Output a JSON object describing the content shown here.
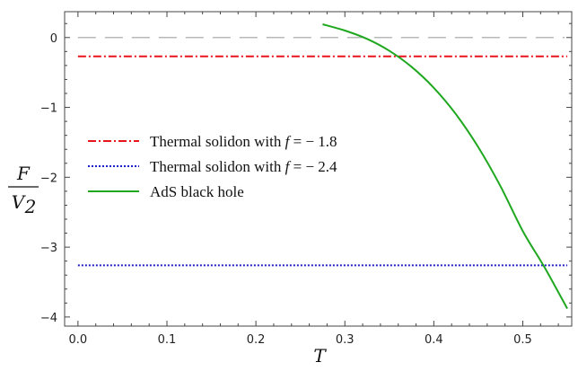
{
  "chart_data": {
    "type": "line",
    "xlabel": "T",
    "ylabel_num": "F",
    "ylabel_den_main": "V",
    "ylabel_den_sub": "2",
    "xlim": [
      -0.015,
      0.555
    ],
    "ylim": [
      -4.13,
      0.37
    ],
    "x_ticks": [
      0.0,
      0.1,
      0.2,
      0.3,
      0.4,
      0.5
    ],
    "x_tick_labels": [
      "0.0",
      "0.1",
      "0.2",
      "0.3",
      "0.4",
      "0.5"
    ],
    "y_ticks": [
      0,
      -1,
      -2,
      -3,
      -4
    ],
    "y_tick_labels": [
      "0",
      "−1",
      "−2",
      "−3",
      "−4"
    ],
    "reference_line": {
      "y": 0,
      "color": "#a0a0a0"
    },
    "series": [
      {
        "name_prefix": "Thermal solidon with ",
        "name_var": "f",
        "name_suffix": " = − 1.8",
        "style": "dashdot",
        "color": "#e8141b",
        "x": [
          0.0,
          0.55
        ],
        "y": [
          -0.27,
          -0.27
        ]
      },
      {
        "name_prefix": "Thermal solidon with ",
        "name_var": "f",
        "name_suffix": " = − 2.4",
        "style": "dotted",
        "color": "#1f1fc8",
        "x": [
          0.0,
          0.55
        ],
        "y": [
          -3.26,
          -3.26
        ]
      },
      {
        "name_prefix": "AdS black hole",
        "name_var": "",
        "name_suffix": "",
        "style": "solid",
        "color": "#1fa81f",
        "x": [
          0.275,
          0.3,
          0.325,
          0.35,
          0.375,
          0.4,
          0.425,
          0.45,
          0.475,
          0.5,
          0.525,
          0.55
        ],
        "y": [
          0.19,
          0.1,
          -0.02,
          -0.19,
          -0.42,
          -0.72,
          -1.1,
          -1.57,
          -2.13,
          -2.77,
          -3.3,
          -3.88
        ]
      }
    ],
    "legend_position": "center-left",
    "grid": false
  }
}
